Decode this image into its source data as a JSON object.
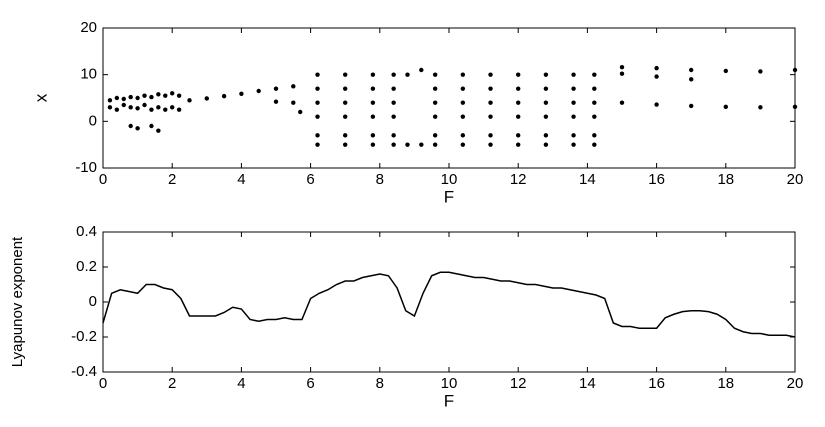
{
  "chart_data": [
    {
      "type": "scatter",
      "xlabel": "F",
      "ylabel": "x",
      "color": "#000000",
      "xlim": [
        0,
        20
      ],
      "xticks": [
        0,
        2,
        4,
        6,
        8,
        10,
        12,
        14,
        16,
        18,
        20
      ],
      "ylim": [
        -10,
        20
      ],
      "yticks": [
        -10,
        0,
        10,
        20
      ],
      "x": [
        0.2,
        0.2,
        0.4,
        0.4,
        0.6,
        0.6,
        0.8,
        0.8,
        0.8,
        1,
        1,
        1,
        1.2,
        1.2,
        1.4,
        1.4,
        1.4,
        1.6,
        1.6,
        1.6,
        1.8,
        1.8,
        2,
        2,
        2.2,
        2.2,
        2.5,
        3,
        3.5,
        4,
        4.5,
        5,
        5.5,
        5,
        5.5,
        5.7,
        6.2,
        6.2,
        6.2,
        6.2,
        6.2,
        6.2,
        7,
        7,
        7,
        7,
        7,
        7,
        7.8,
        7.8,
        7.8,
        7.8,
        7.8,
        7.8,
        8.4,
        8.4,
        8.4,
        8.4,
        8.4,
        8.4,
        9.6,
        9.6,
        9.6,
        9.6,
        9.6,
        9.6,
        10.4,
        10.4,
        10.4,
        10.4,
        10.4,
        10.4,
        11.2,
        11.2,
        11.2,
        11.2,
        11.2,
        11.2,
        12,
        12,
        12,
        12,
        12,
        12,
        12.8,
        12.8,
        12.8,
        12.8,
        12.8,
        12.8,
        13.6,
        13.6,
        13.6,
        13.6,
        13.6,
        13.6,
        14.2,
        14.2,
        14.2,
        14.2,
        14.2,
        14.2,
        8.8,
        8.8,
        9.2,
        9.2,
        15,
        16,
        17,
        18,
        19,
        20,
        15,
        16,
        17,
        15,
        16,
        17,
        18,
        19,
        20
      ],
      "values": [
        3,
        4.5,
        2.5,
        5,
        3.5,
        4.8,
        3,
        5.2,
        -1,
        2.8,
        5,
        -1.5,
        3.5,
        5.5,
        2.5,
        5.2,
        -1,
        3,
        5.8,
        -2,
        2.5,
        5.5,
        3,
        6,
        2.5,
        5.5,
        4.5,
        4.9,
        5.4,
        5.9,
        6.5,
        7,
        7.5,
        4.2,
        4,
        2,
        10,
        7,
        4,
        1,
        -3,
        -5,
        10,
        7,
        4,
        1,
        -3,
        -5,
        10,
        7,
        4,
        1,
        -3,
        -5,
        10,
        7,
        4,
        1,
        -3,
        -5,
        10,
        7,
        4,
        1,
        -3,
        -5,
        10,
        7,
        4,
        1,
        -3,
        -5,
        10,
        7,
        4,
        1,
        -3,
        -5,
        10,
        7,
        4,
        1,
        -3,
        -5,
        10,
        7,
        4,
        1,
        -3,
        -5,
        10,
        7,
        4,
        1,
        -3,
        -5,
        10,
        7,
        4,
        1,
        -3,
        -5,
        -5,
        10,
        -5,
        11,
        11.6,
        11.4,
        11,
        10.8,
        10.7,
        11,
        10.2,
        9.6,
        9,
        4,
        3.6,
        3.3,
        3.1,
        3,
        3.1
      ]
    },
    {
      "type": "line",
      "xlabel": "F",
      "ylabel": "Lyapunov exponent",
      "color": "#000000",
      "xlim": [
        0,
        20
      ],
      "xticks": [
        0,
        2,
        4,
        6,
        8,
        10,
        12,
        14,
        16,
        18,
        20
      ],
      "ylim": [
        -0.4,
        0.4
      ],
      "yticks": [
        -0.4,
        -0.2,
        0,
        0.2,
        0.4
      ],
      "x": [
        0,
        0.25,
        0.5,
        0.75,
        1,
        1.25,
        1.5,
        1.75,
        2,
        2.25,
        2.5,
        2.75,
        3,
        3.25,
        3.5,
        3.75,
        4,
        4.25,
        4.5,
        4.75,
        5,
        5.25,
        5.5,
        5.75,
        6,
        6.25,
        6.5,
        6.75,
        7,
        7.25,
        7.5,
        7.75,
        8,
        8.25,
        8.5,
        8.75,
        9,
        9.25,
        9.5,
        9.75,
        10,
        10.25,
        10.5,
        10.75,
        11,
        11.25,
        11.5,
        11.75,
        12,
        12.25,
        12.5,
        12.75,
        13,
        13.25,
        13.5,
        13.75,
        14,
        14.25,
        14.5,
        14.75,
        15,
        15.25,
        15.5,
        15.75,
        16,
        16.25,
        16.5,
        16.75,
        17,
        17.25,
        17.5,
        17.75,
        18,
        18.25,
        18.5,
        18.75,
        19,
        19.25,
        19.5,
        19.75,
        20
      ],
      "values": [
        -0.12,
        0.05,
        0.07,
        0.06,
        0.05,
        0.1,
        0.1,
        0.08,
        0.07,
        0.02,
        -0.08,
        -0.08,
        -0.08,
        -0.08,
        -0.06,
        -0.03,
        -0.04,
        -0.1,
        -0.11,
        -0.1,
        -0.1,
        -0.09,
        -0.1,
        -0.1,
        0.02,
        0.05,
        0.07,
        0.1,
        0.12,
        0.12,
        0.14,
        0.15,
        0.16,
        0.15,
        0.08,
        -0.05,
        -0.08,
        0.05,
        0.15,
        0.17,
        0.17,
        0.16,
        0.15,
        0.14,
        0.14,
        0.13,
        0.12,
        0.12,
        0.11,
        0.1,
        0.1,
        0.09,
        0.08,
        0.08,
        0.07,
        0.06,
        0.05,
        0.04,
        0.02,
        -0.12,
        -0.14,
        -0.14,
        -0.15,
        -0.15,
        -0.15,
        -0.09,
        -0.07,
        -0.055,
        -0.05,
        -0.05,
        -0.055,
        -0.07,
        -0.1,
        -0.15,
        -0.17,
        -0.18,
        -0.18,
        -0.19,
        -0.19,
        -0.19,
        -0.2
      ]
    }
  ]
}
